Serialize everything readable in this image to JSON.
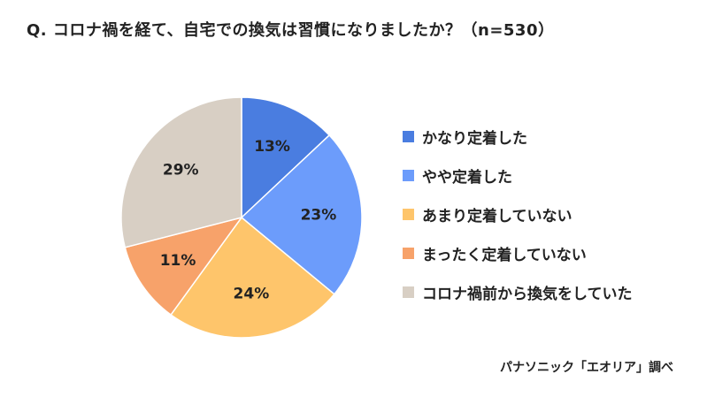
{
  "title": "Q. コロナ禍を経て、自宅での換気は習慣になりましたか？（n=530）",
  "source": "パナソニック「エオリア」調べ",
  "chart_data": {
    "type": "pie",
    "title": "Q. コロナ禍を経て、自宅での換気は習慣になりましたか？（n=530）",
    "unit": "%",
    "start": "12 o'clock",
    "direction": "clockwise",
    "legend_position": "right",
    "slices": [
      {
        "label": "かなり定着した",
        "value": 13,
        "display": "13%",
        "color": "#4a7de0"
      },
      {
        "label": "やや定着した",
        "value": 23,
        "display": "23%",
        "color": "#6c9cfb"
      },
      {
        "label": "あまり定着していない",
        "value": 24,
        "display": "24%",
        "color": "#fec56b"
      },
      {
        "label": "まったく定着していない",
        "value": 11,
        "display": "11%",
        "color": "#f7a26a"
      },
      {
        "label": "コロナ禍前から換気をしていた",
        "value": 29,
        "display": "29%",
        "color": "#d8cfc4"
      }
    ]
  }
}
